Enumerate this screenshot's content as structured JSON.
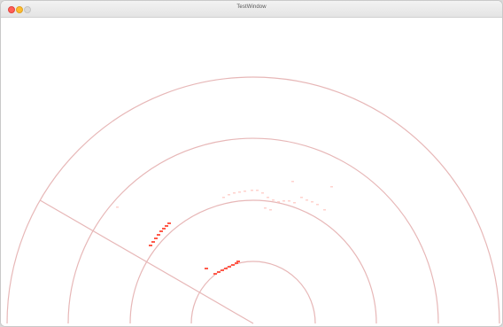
{
  "window": {
    "title": "TestWindow"
  },
  "radar": {
    "ring_color": "#e7b7b7",
    "point_color": "#ff5a4a",
    "faint_point_color": "#ffd2cd",
    "rings": 4,
    "sweep_angle_degrees": 150
  }
}
